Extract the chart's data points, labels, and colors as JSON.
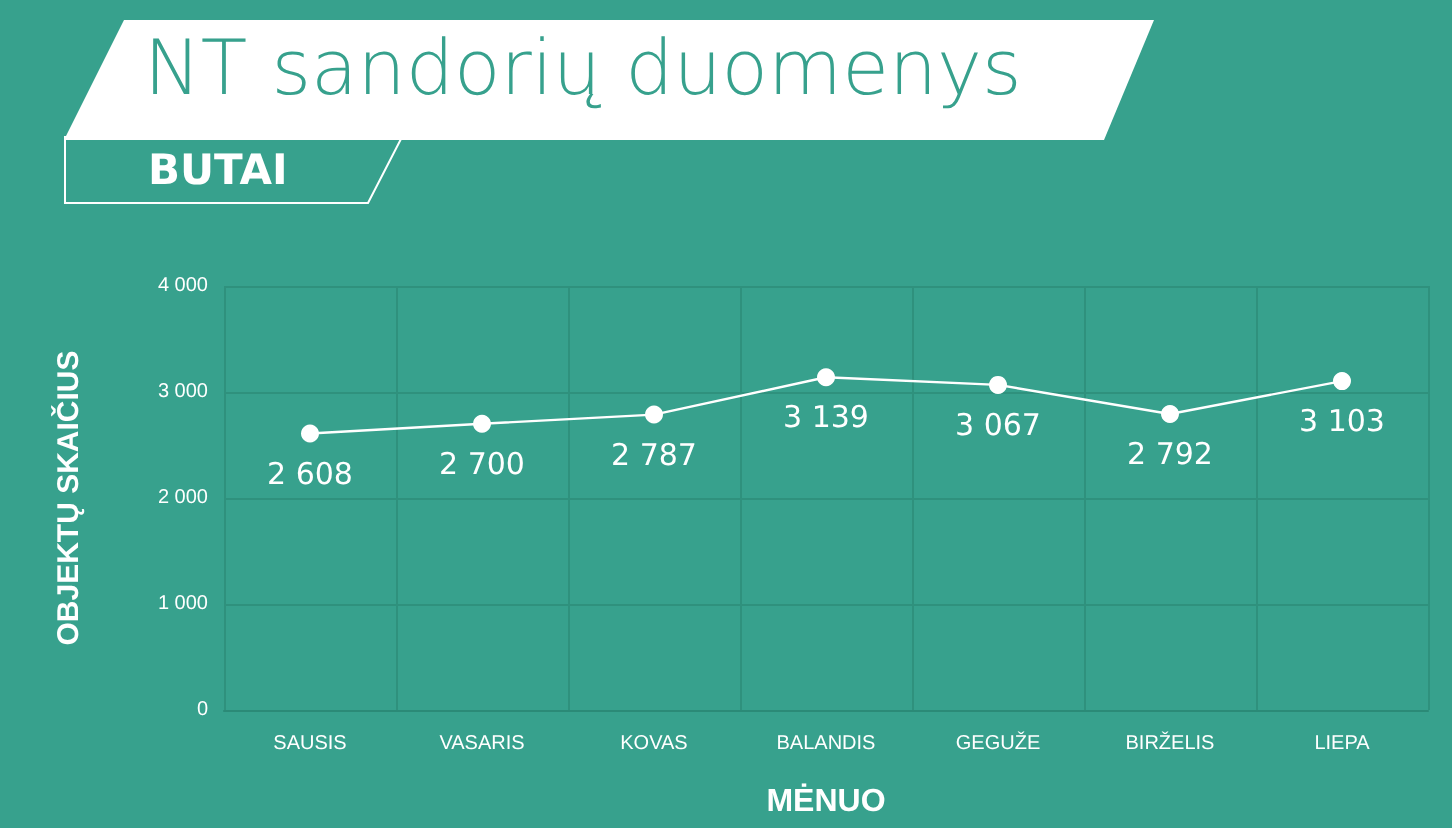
{
  "chart_data": {
    "type": "line",
    "title": "NT sandorių duomenys",
    "subtitle": "BUTAI",
    "xlabel": "MĖNUO",
    "ylabel": "OBJEKTŲ SKAIČIUS",
    "categories": [
      "SAUSIS",
      "VASARIS",
      "KOVAS",
      "BALANDIS",
      "GEGUŽE",
      "BIRŽELIS",
      "LIEPA"
    ],
    "series": [
      {
        "color": "#ffffff",
        "values": [
          2608,
          2700,
          2787,
          3139,
          3067,
          2792,
          3103
        ],
        "value_labels": [
          "2 608",
          "2 700",
          "2 787",
          "3 139",
          "3 067",
          "2 792",
          "3 103"
        ]
      }
    ],
    "ylim": [
      0,
      4000
    ],
    "yticks": [
      {
        "value": 0,
        "label": "0"
      },
      {
        "value": 1000,
        "label": "1 000"
      },
      {
        "value": 2000,
        "label": "2 000"
      },
      {
        "value": 3000,
        "label": "3 000"
      },
      {
        "value": 4000,
        "label": "4 000"
      }
    ],
    "grid": true,
    "marker": "circle",
    "line_style": "solid"
  }
}
